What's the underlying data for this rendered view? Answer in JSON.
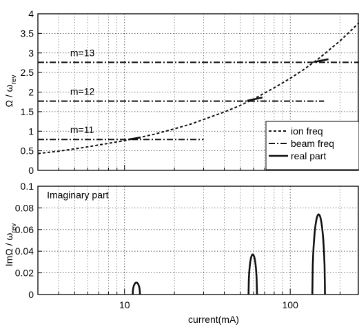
{
  "chart_data": [
    {
      "type": "line",
      "xlabel": "",
      "ylabel": "Ω / ω",
      "ylabel_sub": "rev",
      "xscale": "log",
      "xlim": [
        3,
        260
      ],
      "ylim": [
        0,
        4
      ],
      "yticks": [
        "0",
        "0.5",
        "1",
        "1.5",
        "2",
        "2.5",
        "3",
        "3.5",
        "4"
      ],
      "grid": true,
      "legend_position": "bottom-right",
      "legend": [
        "ion freq",
        "beam freq",
        "real part"
      ],
      "annotations": [
        {
          "text": "m=13",
          "x": 4.7,
          "y": 2.92
        },
        {
          "text": "m=12",
          "x": 4.7,
          "y": 1.93
        },
        {
          "text": "m=11",
          "x": 4.7,
          "y": 0.95
        }
      ],
      "series": [
        {
          "name": "ion freq",
          "style": "dash",
          "x": [
            3,
            4,
            5,
            6,
            8,
            10,
            12,
            15,
            20,
            25,
            30,
            40,
            50,
            60,
            80,
            100,
            120,
            150,
            200,
            260
          ],
          "y": [
            0.43,
            0.49,
            0.55,
            0.6,
            0.69,
            0.76,
            0.83,
            0.92,
            1.06,
            1.18,
            1.3,
            1.49,
            1.66,
            1.82,
            2.11,
            2.35,
            2.57,
            2.87,
            3.31,
            3.77
          ]
        },
        {
          "name": "beam freq",
          "style": "dashdot",
          "segments": [
            {
              "x": [
                3,
                30
              ],
              "y": [
                0.79,
                0.79
              ]
            },
            {
              "x": [
                3,
                160
              ],
              "y": [
                1.77,
                1.77
              ]
            },
            {
              "x": [
                3,
                260
              ],
              "y": [
                2.76,
                2.76
              ]
            }
          ]
        },
        {
          "name": "real part",
          "style": "solid",
          "segments": [
            {
              "x": [
                10.6,
                12.5
              ],
              "y": [
                0.79,
                0.84
              ]
            },
            {
              "x": [
                55,
                68
              ],
              "y": [
                1.78,
                1.86
              ]
            },
            {
              "x": [
                140,
                170
              ],
              "y": [
                2.77,
                2.84
              ]
            }
          ]
        }
      ]
    },
    {
      "type": "line",
      "xlabel": "current(mA)",
      "ylabel": "ImΩ / ω",
      "ylabel_sub": "rev",
      "xscale": "log",
      "xlim": [
        3,
        260
      ],
      "ylim": [
        0,
        0.1
      ],
      "xticks": [
        "10",
        "100"
      ],
      "yticks": [
        "0",
        "0.02",
        "0.04",
        "0.06",
        "0.08",
        "0.1"
      ],
      "grid": true,
      "annotations": [
        {
          "text": "Imaginary part",
          "x": 3.4,
          "y": 0.089
        }
      ],
      "series": [
        {
          "name": "",
          "style": "solid",
          "humps": [
            {
              "x0": 11.2,
              "x1": 12.4,
              "peak": 0.011
            },
            {
              "x0": 56,
              "x1": 63,
              "peak": 0.037
            },
            {
              "x0": 136,
              "x1": 162,
              "peak": 0.074
            }
          ]
        }
      ]
    }
  ]
}
